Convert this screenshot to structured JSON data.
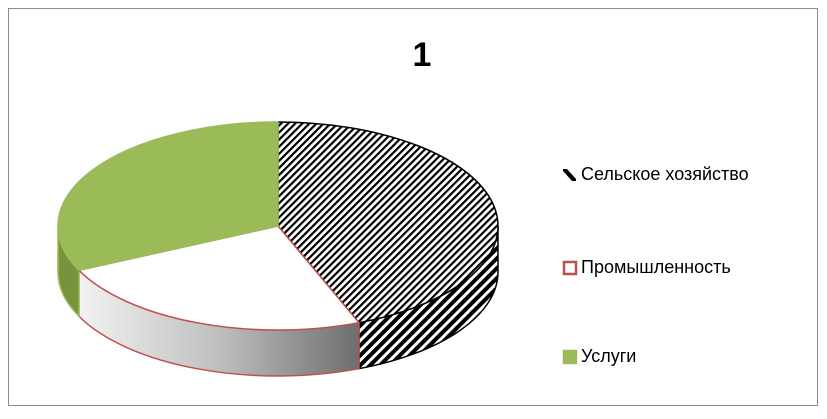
{
  "chart_data": {
    "type": "pie",
    "title": "1",
    "categories": [
      "Сельское хозяйство",
      "Промышленность",
      "Услуги"
    ],
    "values": [
      44,
      24,
      32
    ],
    "colors": [
      "#000000",
      "#ffffff",
      "#9bbb59"
    ],
    "edge_colors": [
      "#000000",
      "#c0504d",
      "#9bbb59"
    ],
    "patterns": [
      "dark-diagonal",
      "solid",
      "solid"
    ],
    "three_d": true,
    "legend": "right"
  }
}
